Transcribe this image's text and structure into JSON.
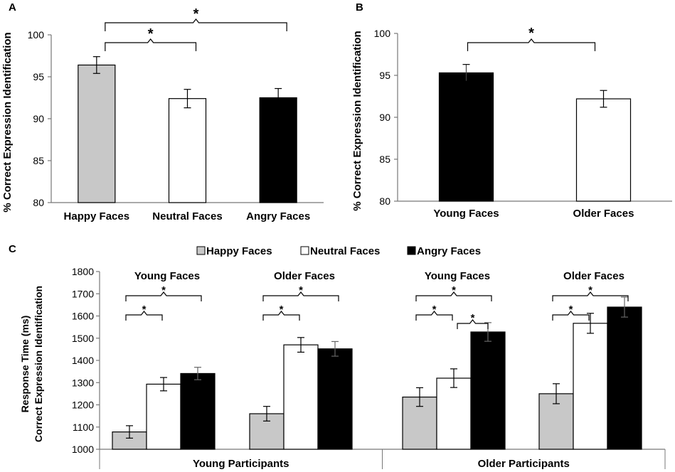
{
  "colors": {
    "happy": "#c8c8c8",
    "neutral": "#ffffff",
    "angry": "#000000",
    "young": "#000000",
    "older": "#ffffff",
    "stroke": "#000000"
  },
  "chart_data": [
    {
      "panel": "A",
      "type": "bar",
      "ylabel": "% Correct Expression Identification",
      "ylim": [
        80,
        100
      ],
      "yticks": [
        80,
        85,
        90,
        95,
        100
      ],
      "categories": [
        "Happy Faces",
        "Neutral Faces",
        "Angry Faces"
      ],
      "values": [
        96.4,
        92.4,
        92.5
      ],
      "errors": [
        1.0,
        1.1,
        1.1
      ],
      "color_keys": [
        "happy",
        "neutral",
        "angry"
      ],
      "significance": [
        {
          "from": 0,
          "to": 1,
          "label": "*",
          "level": 0
        },
        {
          "from": 0,
          "to": 2,
          "label": "*",
          "level": 1
        }
      ]
    },
    {
      "panel": "B",
      "type": "bar",
      "ylabel": "% Correct Expression Identification",
      "ylim": [
        80,
        100
      ],
      "yticks": [
        80,
        85,
        90,
        95,
        100
      ],
      "categories": [
        "Young Faces",
        "Older Faces"
      ],
      "values": [
        95.3,
        92.2
      ],
      "errors": [
        1.0,
        1.0
      ],
      "color_keys": [
        "young",
        "older"
      ],
      "significance": [
        {
          "from": 0,
          "to": 1,
          "label": "*",
          "level": 0
        }
      ]
    },
    {
      "panel": "C",
      "type": "bar",
      "ylabel_lines": [
        "Response Time (ms)",
        "Correct Expression Identification"
      ],
      "ylim": [
        1000,
        1800
      ],
      "yticks": [
        1000,
        1100,
        1200,
        1300,
        1400,
        1500,
        1600,
        1700,
        1800
      ],
      "legend": [
        "Happy Faces",
        "Neutral Faces",
        "Angry Faces"
      ],
      "legend_keys": [
        "happy",
        "neutral",
        "angry"
      ],
      "groups": [
        {
          "participants": "Young Participants",
          "subgroups": [
            {
              "label": "Young Faces",
              "values": [
                1078,
                1293,
                1341
              ],
              "errors": [
                28,
                30,
                28
              ],
              "significance": [
                {
                  "from": 0,
                  "to": 1,
                  "label": "*",
                  "level": 0
                },
                {
                  "from": 0,
                  "to": 2,
                  "label": "*",
                  "level": 1
                }
              ]
            },
            {
              "label": "Older Faces",
              "values": [
                1160,
                1470,
                1452
              ],
              "errors": [
                33,
                33,
                33
              ],
              "significance": [
                {
                  "from": 0,
                  "to": 1,
                  "label": "*",
                  "level": 0
                },
                {
                  "from": 0,
                  "to": 2,
                  "label": "*",
                  "level": 1
                }
              ]
            }
          ]
        },
        {
          "participants": "Older Participants",
          "subgroups": [
            {
              "label": "Young Faces",
              "values": [
                1235,
                1320,
                1528
              ],
              "errors": [
                42,
                42,
                42
              ],
              "significance": [
                {
                  "from": 0,
                  "to": 1,
                  "label": "*",
                  "level": 0
                },
                {
                  "from": 1,
                  "to": 2,
                  "label": "*",
                  "level": -1
                },
                {
                  "from": 0,
                  "to": 2,
                  "label": "*",
                  "level": 1
                }
              ]
            },
            {
              "label": "Older Faces",
              "values": [
                1250,
                1567,
                1640
              ],
              "errors": [
                45,
                45,
                45
              ],
              "significance": [
                {
                  "from": 0,
                  "to": 1,
                  "label": "*",
                  "level": 0
                },
                {
                  "from": 0,
                  "to": 2,
                  "label": "*",
                  "level": 1
                }
              ]
            }
          ]
        }
      ]
    }
  ]
}
